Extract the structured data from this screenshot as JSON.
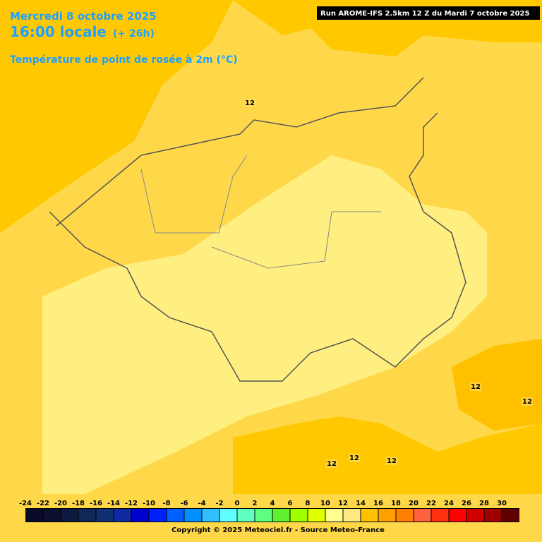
{
  "header": {
    "date": "Mercredi 8 octobre 2025",
    "time": "16:00 locale",
    "offset": "(+ 26h)",
    "parameter": "Température de point de rosée à 2m (°C)",
    "run": "Run AROME-IFS 2.5km 12 Z du Mardi 7 octobre 2025"
  },
  "map": {
    "labels": [
      "12",
      "12",
      "12",
      "12",
      "12",
      "12"
    ]
  },
  "legend": {
    "items": [
      {
        "value": -24,
        "color": "#0a0a28"
      },
      {
        "value": -22,
        "color": "#0c1030"
      },
      {
        "value": -20,
        "color": "#0e1840"
      },
      {
        "value": -18,
        "color": "#102858"
      },
      {
        "value": -16,
        "color": "#103070"
      },
      {
        "value": -14,
        "color": "#1028a0"
      },
      {
        "value": -12,
        "color": "#0000d0"
      },
      {
        "value": -10,
        "color": "#0020ff"
      },
      {
        "value": -8,
        "color": "#0060ff"
      },
      {
        "value": -6,
        "color": "#0090ff"
      },
      {
        "value": -4,
        "color": "#30c0ff"
      },
      {
        "value": -2,
        "color": "#60ffff"
      },
      {
        "value": 0,
        "color": "#60ffc0"
      },
      {
        "value": 2,
        "color": "#60ff80"
      },
      {
        "value": 4,
        "color": "#60f030"
      },
      {
        "value": 6,
        "color": "#a0ff00"
      },
      {
        "value": 8,
        "color": "#e0ff00"
      },
      {
        "value": 10,
        "color": "#ffff90"
      },
      {
        "value": 12,
        "color": "#ffe880"
      },
      {
        "value": 14,
        "color": "#ffc000"
      },
      {
        "value": 16,
        "color": "#ffa000"
      },
      {
        "value": 18,
        "color": "#ff8000"
      },
      {
        "value": 20,
        "color": "#ff6040"
      },
      {
        "value": 22,
        "color": "#ff3010"
      },
      {
        "value": 24,
        "color": "#ff0000"
      },
      {
        "value": 26,
        "color": "#d00000"
      },
      {
        "value": 28,
        "color": "#a00000"
      },
      {
        "value": 30,
        "color": "#600000"
      }
    ]
  },
  "footer": {
    "copyright": "Copyright © 2025 Meteociel.fr - Source Meteo-France"
  }
}
